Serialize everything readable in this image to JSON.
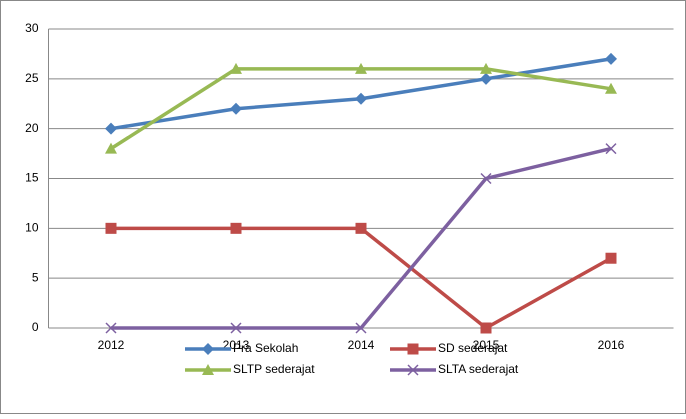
{
  "chart_data": {
    "type": "line",
    "categories": [
      "2012",
      "2013",
      "2014",
      "2015",
      "2016"
    ],
    "series": [
      {
        "name": "Pra Sekolah",
        "color": "#4a7ebb",
        "marker": "diamond",
        "values": [
          20,
          22,
          23,
          25,
          27
        ]
      },
      {
        "name": "SD sederajat",
        "color": "#be4b48",
        "marker": "square",
        "values": [
          10,
          10,
          10,
          0,
          7
        ]
      },
      {
        "name": "SLTP sederajat",
        "color": "#98b954",
        "marker": "triangle",
        "values": [
          18,
          26,
          26,
          26,
          24
        ]
      },
      {
        "name": "SLTA sederajat",
        "color": "#7d60a0",
        "marker": "x",
        "values": [
          0,
          0,
          0,
          15,
          18
        ]
      }
    ],
    "ylim": [
      0,
      30
    ],
    "yticks": [
      0,
      5,
      10,
      15,
      20,
      25,
      30
    ],
    "grid": true,
    "legend": "bottom"
  }
}
